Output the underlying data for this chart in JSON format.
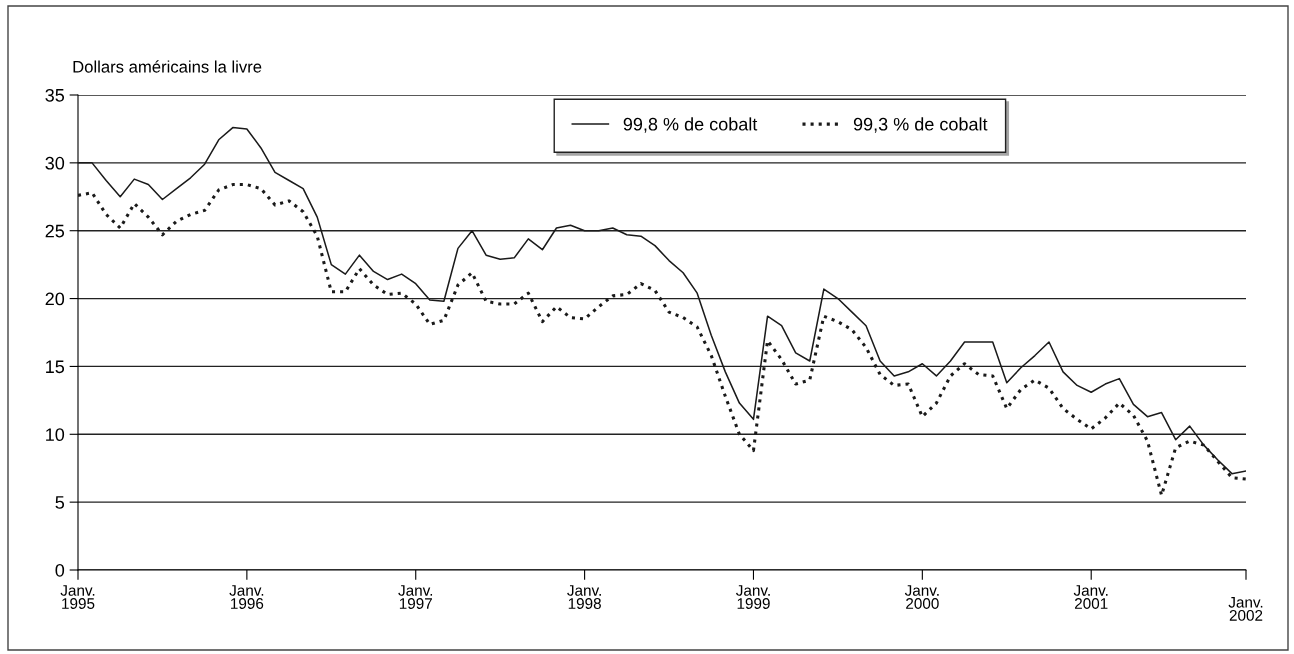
{
  "chart_data": {
    "type": "line",
    "ylabel": "Dollars américains la livre",
    "categories": [
      "Janv.\n1995",
      null,
      null,
      null,
      null,
      null,
      null,
      null,
      null,
      null,
      null,
      null,
      "Janv.\n1996",
      null,
      null,
      null,
      null,
      null,
      null,
      null,
      null,
      null,
      null,
      null,
      "Janv.\n1997",
      null,
      null,
      null,
      null,
      null,
      null,
      null,
      null,
      null,
      null,
      null,
      "Janv.\n1998",
      null,
      null,
      null,
      null,
      null,
      null,
      null,
      null,
      null,
      null,
      null,
      "Janv.\n1999",
      null,
      null,
      null,
      null,
      null,
      null,
      null,
      null,
      null,
      null,
      null,
      "Janv.\n2000",
      null,
      null,
      null,
      null,
      null,
      null,
      null,
      null,
      null,
      null,
      null,
      "Janv.\n2001",
      null,
      null,
      null,
      null,
      null,
      null,
      null,
      null,
      null,
      null,
      "Janv.\n2002"
    ],
    "series": [
      {
        "name": "99,8 % de cobalt",
        "color": "#1a1a1a",
        "line_style": "solid",
        "values": [
          30,
          30,
          28.7,
          27.5,
          28.8,
          28.4,
          27.3,
          28.1,
          28.9,
          29.9,
          31.7,
          32.6,
          32.5,
          31.1,
          29.3,
          28.7,
          28.1,
          26.0,
          22.5,
          21.8,
          23.2,
          22.0,
          21.4,
          21.8,
          21.1,
          19.9,
          19.8,
          23.7,
          25.0,
          23.2,
          22.9,
          23.0,
          24.4,
          23.6,
          25.2,
          25.4,
          25.0,
          25.0,
          25.2,
          24.7,
          24.6,
          23.9,
          22.8,
          21.9,
          20.4,
          17.3,
          14.6,
          12.3,
          11.1,
          18.7,
          18.0,
          16.0,
          15.4,
          20.7,
          20.0,
          19.0,
          18.0,
          15.4,
          14.3,
          14.6,
          15.2,
          14.3,
          15.4,
          16.8,
          16.8,
          16.8,
          13.8,
          14.9,
          15.8,
          16.8,
          14.6,
          13.6,
          13.1,
          13.7,
          14.1,
          12.2,
          11.3,
          11.6,
          9.6,
          10.6,
          9.2,
          8.1,
          7.1,
          7.3
        ]
      },
      {
        "name": "99,3 % de cobalt",
        "color": "#1a1a1a",
        "line_style": "dotted",
        "values": [
          27.6,
          27.8,
          26.2,
          25.2,
          27.0,
          26.0,
          24.7,
          25.7,
          26.2,
          26.5,
          28.0,
          28.4,
          28.4,
          28.1,
          26.9,
          27.2,
          26.4,
          24.6,
          20.5,
          20.5,
          22.2,
          21.0,
          20.3,
          20.4,
          19.6,
          18.1,
          18.4,
          21.0,
          21.9,
          19.8,
          19.6,
          19.6,
          20.4,
          18.3,
          19.4,
          18.6,
          18.5,
          19.4,
          20.2,
          20.3,
          21.1,
          20.6,
          19.0,
          18.6,
          17.9,
          15.8,
          12.8,
          10.0,
          8.8,
          16.9,
          15.5,
          13.7,
          14.0,
          18.7,
          18.3,
          17.7,
          16.4,
          14.4,
          13.6,
          13.7,
          11.3,
          12.3,
          14.3,
          15.2,
          14.4,
          14.3,
          11.9,
          13.3,
          14.0,
          13.4,
          11.9,
          11.1,
          10.4,
          11.2,
          12.3,
          11.4,
          9.5,
          5.5,
          9.0,
          9.5,
          9.2,
          8.0,
          6.8,
          6.7
        ]
      }
    ],
    "ylim": [
      0,
      35
    ],
    "yticks": [
      0,
      5,
      10,
      15,
      20,
      25,
      30,
      35
    ],
    "grid": "y",
    "legend": "top",
    "marker": "none"
  }
}
